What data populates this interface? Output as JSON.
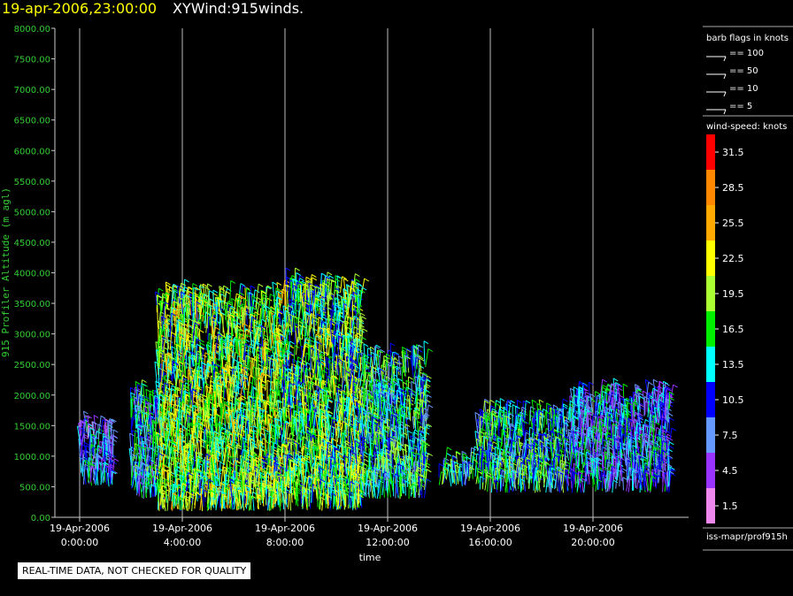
{
  "header": {
    "date": "19-apr-2006,23:00:00",
    "product": "XYWind:915winds."
  },
  "notice": "REAL-TIME DATA, NOT CHECKED FOR QUALITY",
  "legend": {
    "barb_title": "barb flags in knots",
    "barbs": [
      {
        "label": "== 100"
      },
      {
        "label": "== 50"
      },
      {
        "label": "== 10"
      },
      {
        "label": "== 5"
      }
    ],
    "speed_title": "wind-speed: knots",
    "speed_colors": [
      "#ff0000",
      "#ff8800",
      "#ffaa00",
      "#ffff00",
      "#aaff33",
      "#00ee00",
      "#00ffff",
      "#0000ff",
      "#6699ff",
      "#9933ff",
      "#ee88ee"
    ],
    "speed_labels": [
      "31.5",
      "28.5",
      "25.5",
      "22.5",
      "19.5",
      "16.5",
      "13.5",
      "10.5",
      "7.5",
      "4.5",
      "1.5"
    ],
    "footer": "iss-mapr/prof915h"
  },
  "chart_data": {
    "type": "scatter",
    "title": "19-apr-2006,23:00:00  XYWind:915winds.",
    "xlabel": "time",
    "ylabel": "915 Profiler Altitude (m agl)",
    "ylim": [
      0,
      8000
    ],
    "x_ticks": [
      {
        "date": "19-Apr-2006",
        "time": "0:00:00"
      },
      {
        "date": "19-Apr-2006",
        "time": "4:00:00"
      },
      {
        "date": "19-Apr-2006",
        "time": "8:00:00"
      },
      {
        "date": "19-Apr-2006",
        "time": "12:00:00"
      },
      {
        "date": "19-Apr-2006",
        "time": "16:00:00"
      },
      {
        "date": "19-Apr-2006",
        "time": "20:00:00"
      }
    ],
    "y_ticks": [
      "0.00",
      "500.00",
      "1000.00",
      "1500.00",
      "2000.00",
      "2500.00",
      "3000.00",
      "3500.00",
      "4000.00",
      "4500.00",
      "5000.00",
      "5500.00",
      "6000.00",
      "6500.00",
      "7000.00",
      "7500.00",
      "8000.00"
    ],
    "grid": "vertical lines at time ticks",
    "data_description": "wind barbs per profile time/height, colored by wind speed (knots)",
    "segments": [
      {
        "start_hour": 0.0,
        "end_hour": 1.3,
        "min_alt_m": 500,
        "max_alt_m": 1400,
        "typical_speed_kt": 9
      },
      {
        "start_hour": 2.0,
        "end_hour": 3.0,
        "min_alt_m": 300,
        "max_alt_m": 1900,
        "typical_speed_kt": 12
      },
      {
        "start_hour": 3.0,
        "end_hour": 8.0,
        "min_alt_m": 100,
        "max_alt_m": 3500,
        "typical_speed_kt": 18
      },
      {
        "start_hour": 8.0,
        "end_hour": 11.0,
        "min_alt_m": 100,
        "max_alt_m": 3700,
        "typical_speed_kt": 17
      },
      {
        "start_hour": 11.0,
        "end_hour": 13.5,
        "min_alt_m": 300,
        "max_alt_m": 2500,
        "typical_speed_kt": 14
      },
      {
        "start_hour": 14.0,
        "end_hour": 15.5,
        "min_alt_m": 500,
        "max_alt_m": 800,
        "typical_speed_kt": 14
      },
      {
        "start_hour": 15.5,
        "end_hour": 19.0,
        "min_alt_m": 400,
        "max_alt_m": 1600,
        "typical_speed_kt": 14
      },
      {
        "start_hour": 19.0,
        "end_hour": 23.0,
        "min_alt_m": 400,
        "max_alt_m": 1900,
        "typical_speed_kt": 10
      }
    ]
  }
}
